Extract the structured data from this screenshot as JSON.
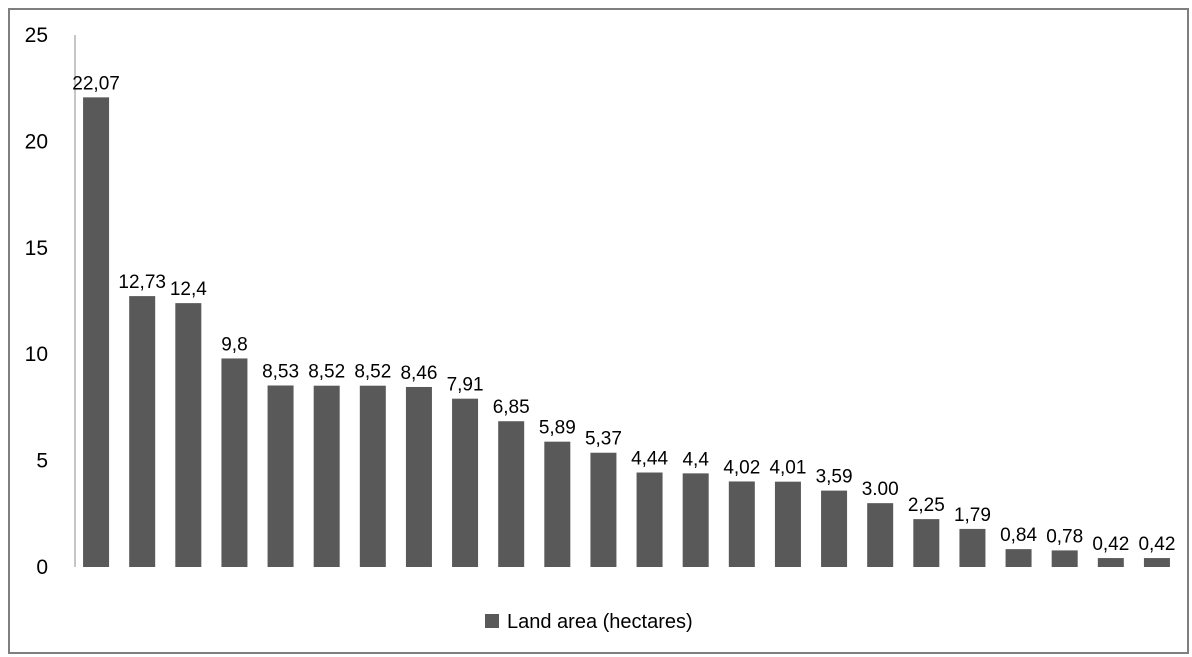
{
  "chart_data": {
    "type": "bar",
    "ylim": [
      0,
      25
    ],
    "y_ticks": [
      0,
      5,
      10,
      15,
      20,
      25
    ],
    "grid": false,
    "legend_position": "bottom-center",
    "series": [
      {
        "name": "Land area (hectares)",
        "color": "#595959",
        "values": [
          22.07,
          12.73,
          12.4,
          9.8,
          8.53,
          8.52,
          8.52,
          8.46,
          7.91,
          6.85,
          5.89,
          5.37,
          4.44,
          4.4,
          4.02,
          4.01,
          3.59,
          3.0,
          2.25,
          1.79,
          0.84,
          0.78,
          0.42,
          0.42
        ],
        "labels": [
          "22,07",
          "12,73",
          "12,4",
          "9,8",
          "8,53",
          "8,52",
          "8,52",
          "8,46",
          "7,91",
          "6,85",
          "5,89",
          "5,37",
          "4,44",
          "4,4",
          "4,02",
          "4,01",
          "3,59",
          "3.00",
          "2,25",
          "1,79",
          "0,84",
          "0,78",
          "0,42",
          "0,42"
        ]
      }
    ]
  }
}
